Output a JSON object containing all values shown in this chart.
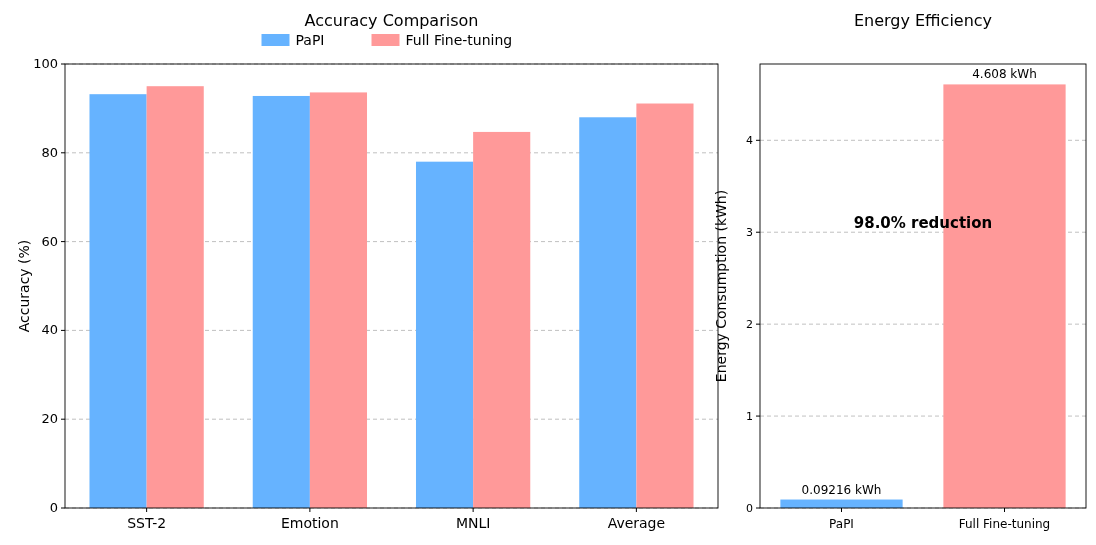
{
  "chart_data": [
    {
      "type": "bar",
      "title": "Accuracy Comparison",
      "ylabel": "Accuracy (%)",
      "categories": [
        "SST-2",
        "Emotion",
        "MNLI",
        "Average"
      ],
      "series": [
        {
          "name": "PaPI",
          "color": "#66b3ff",
          "values": [
            93.2,
            92.8,
            78.0,
            88.0
          ]
        },
        {
          "name": "Full Fine-tuning",
          "color": "#ff9999",
          "values": [
            95.0,
            93.6,
            84.7,
            91.1
          ]
        }
      ],
      "ylim": [
        0,
        100
      ],
      "yticks": [
        0,
        20,
        40,
        60,
        80,
        100
      ],
      "grid": "y",
      "legend": "top"
    },
    {
      "type": "bar",
      "title": "Energy Efficiency",
      "ylabel": "Energy Consumption (kWh)",
      "categories": [
        "PaPI",
        "Full Fine-tuning"
      ],
      "values": [
        0.09216,
        4.608
      ],
      "colors": [
        "#66b3ff",
        "#ff9999"
      ],
      "value_labels": [
        "0.09216 kWh",
        "4.608 kWh"
      ],
      "ylim": [
        0,
        4.83
      ],
      "yticks": [
        0,
        1,
        2,
        3,
        4
      ],
      "grid": "y",
      "annotations": [
        "98.0% reduction"
      ]
    }
  ]
}
